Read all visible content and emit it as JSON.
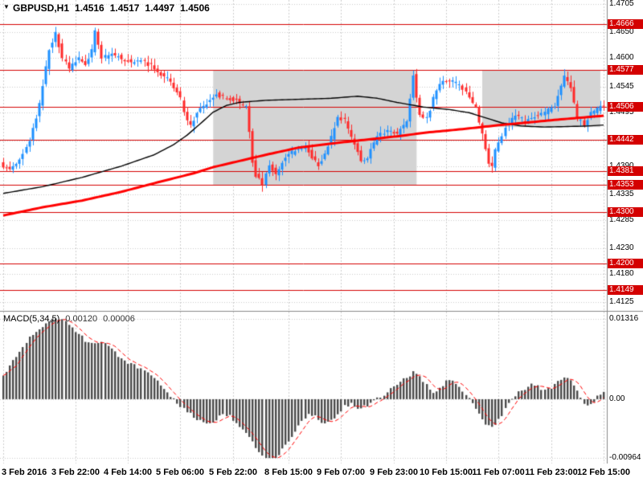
{
  "main_chart": {
    "symbol_timeframe": "GBPUSD,H1",
    "open": "1.4516",
    "high": "1.4517",
    "low": "1.4497",
    "close": "1.4506"
  },
  "macd": {
    "label": "MACD(5,34,5)",
    "value_main": "0.00120",
    "value_signal": "0.00006",
    "axis_labels": [
      "0.01316",
      "0.00",
      "-0.00964"
    ]
  },
  "colors": {
    "background": "#ffffff",
    "grid": "#cccccc",
    "bull": "#1e90ff",
    "bear": "#ff2a2a",
    "ma_fast": "#000000",
    "ma_slow": "#ff0000",
    "level": "#d40000",
    "level_label_bg": "#d40000",
    "zone": "#d4d4d4",
    "histogram": "#4a4a4a",
    "signal": "#ff0000",
    "separator": "#888888",
    "axis_text": "#000000"
  },
  "chart_data": {
    "type": "candlestick",
    "symbol": "GBPUSD",
    "timeframe": "H1",
    "title": "GBPUSD,H1 1.4516 1.4517 1.4497 1.4506",
    "candles_count": 184,
    "price_axis": {
      "scale_min": 1.411,
      "scale_max": 1.471,
      "plain_labels": [
        "1.4705",
        "1.4650",
        "1.4600",
        "1.4545",
        "1.4495",
        "1.4390",
        "1.4335",
        "1.4285",
        "1.4230",
        "1.4180",
        "1.4125"
      ],
      "grid_prices": [
        1.4705,
        1.465,
        1.46,
        1.4545,
        1.4495,
        1.444,
        1.439,
        1.4335,
        1.4285,
        1.423,
        1.418,
        1.4125
      ]
    },
    "levels": [
      "1.4666",
      "1.4577",
      "1.4506",
      "1.4442",
      "1.4381",
      "1.4353",
      "1.4300",
      "1.4200",
      "1.4149"
    ],
    "current_price": "1.4506",
    "zones": [
      {
        "start_bar": 64,
        "end_bar": 126,
        "top_price": 1.4577,
        "bottom_price": 1.4353
      },
      {
        "start_bar": 146,
        "end_bar": 182,
        "top_price": 1.4577,
        "bottom_price": 1.4466
      }
    ],
    "x_ticks": [
      {
        "bar": 0,
        "label": "3 Feb 2016"
      },
      {
        "bar": 22,
        "label": "3 Feb 22:00"
      },
      {
        "bar": 38,
        "label": "4 Feb 14:00"
      },
      {
        "bar": 54,
        "label": "5 Feb 06:00"
      },
      {
        "bar": 70,
        "label": "5 Feb 22:00"
      },
      {
        "bar": 87,
        "label": "8 Feb 15:00"
      },
      {
        "bar": 103,
        "label": "9 Feb 07:00"
      },
      {
        "bar": 119,
        "label": "9 Feb 23:00"
      },
      {
        "bar": 135,
        "label": "10 Feb 15:00"
      },
      {
        "bar": 151,
        "label": "11 Feb 07:00"
      },
      {
        "bar": 167,
        "label": "11 Feb 23:00"
      },
      {
        "bar": 183,
        "label": "12 Feb 15:00"
      }
    ],
    "price_path_anchors": [
      [
        0,
        1.4395
      ],
      [
        3,
        1.4382
      ],
      [
        6,
        1.44
      ],
      [
        9,
        1.4438
      ],
      [
        12,
        1.451
      ],
      [
        15,
        1.4618
      ],
      [
        17,
        1.465
      ],
      [
        19,
        1.46
      ],
      [
        21,
        1.458
      ],
      [
        24,
        1.46
      ],
      [
        26,
        1.4588
      ],
      [
        28,
        1.4615
      ],
      [
        29,
        1.4655
      ],
      [
        31,
        1.46
      ],
      [
        34,
        1.4608
      ],
      [
        37,
        1.46
      ],
      [
        40,
        1.4592
      ],
      [
        43,
        1.4596
      ],
      [
        46,
        1.4585
      ],
      [
        49,
        1.457
      ],
      [
        52,
        1.4556
      ],
      [
        55,
        1.452
      ],
      [
        57,
        1.4478
      ],
      [
        58,
        1.4468
      ],
      [
        60,
        1.4495
      ],
      [
        63,
        1.4512
      ],
      [
        66,
        1.453
      ],
      [
        69,
        1.4522
      ],
      [
        72,
        1.4518
      ],
      [
        75,
        1.4505
      ],
      [
        76,
        1.446
      ],
      [
        77,
        1.44
      ],
      [
        78,
        1.4372
      ],
      [
        80,
        1.4355
      ],
      [
        82,
        1.439
      ],
      [
        84,
        1.4376
      ],
      [
        86,
        1.4398
      ],
      [
        88,
        1.4412
      ],
      [
        90,
        1.442
      ],
      [
        93,
        1.4428
      ],
      [
        95,
        1.4408
      ],
      [
        97,
        1.4392
      ],
      [
        99,
        1.4415
      ],
      [
        101,
        1.4445
      ],
      [
        103,
        1.4488
      ],
      [
        105,
        1.4478
      ],
      [
        107,
        1.4445
      ],
      [
        109,
        1.442
      ],
      [
        110,
        1.4402
      ],
      [
        112,
        1.4408
      ],
      [
        115,
        1.4448
      ],
      [
        118,
        1.446
      ],
      [
        121,
        1.4452
      ],
      [
        124,
        1.4478
      ],
      [
        126,
        1.457
      ],
      [
        127,
        1.452
      ],
      [
        128,
        1.4488
      ],
      [
        130,
        1.4482
      ],
      [
        133,
        1.454
      ],
      [
        136,
        1.4558
      ],
      [
        139,
        1.4552
      ],
      [
        142,
        1.4535
      ],
      [
        145,
        1.4502
      ],
      [
        147,
        1.4452
      ],
      [
        149,
        1.4398
      ],
      [
        150,
        1.4388
      ],
      [
        151,
        1.442
      ],
      [
        154,
        1.4468
      ],
      [
        157,
        1.4488
      ],
      [
        160,
        1.4478
      ],
      [
        163,
        1.4488
      ],
      [
        166,
        1.4494
      ],
      [
        169,
        1.4508
      ],
      [
        171,
        1.4545
      ],
      [
        172,
        1.4565
      ],
      [
        174,
        1.4542
      ],
      [
        176,
        1.4482
      ],
      [
        178,
        1.447
      ],
      [
        180,
        1.4492
      ],
      [
        183,
        1.4506
      ]
    ],
    "ma_fast_black_anchors": [
      [
        0,
        1.4337
      ],
      [
        12,
        1.435
      ],
      [
        24,
        1.4368
      ],
      [
        36,
        1.439
      ],
      [
        46,
        1.4412
      ],
      [
        52,
        1.4432
      ],
      [
        56,
        1.445
      ],
      [
        60,
        1.4472
      ],
      [
        64,
        1.4495
      ],
      [
        68,
        1.4508
      ],
      [
        72,
        1.4514
      ],
      [
        80,
        1.4518
      ],
      [
        90,
        1.452
      ],
      [
        100,
        1.4522
      ],
      [
        108,
        1.4526
      ],
      [
        114,
        1.4522
      ],
      [
        120,
        1.4514
      ],
      [
        128,
        1.4505
      ],
      [
        136,
        1.45
      ],
      [
        142,
        1.4494
      ],
      [
        147,
        1.4484
      ],
      [
        152,
        1.4474
      ],
      [
        158,
        1.4468
      ],
      [
        165,
        1.4466
      ],
      [
        172,
        1.4467
      ],
      [
        178,
        1.4468
      ],
      [
        183,
        1.447
      ]
    ],
    "ma_slow_red_anchors": [
      [
        0,
        1.4294
      ],
      [
        12,
        1.431
      ],
      [
        24,
        1.4323
      ],
      [
        36,
        1.434
      ],
      [
        48,
        1.436
      ],
      [
        58,
        1.4376
      ],
      [
        64,
        1.4388
      ],
      [
        72,
        1.44
      ],
      [
        80,
        1.4412
      ],
      [
        90,
        1.4426
      ],
      [
        100,
        1.4434
      ],
      [
        110,
        1.4441
      ],
      [
        120,
        1.4448
      ],
      [
        130,
        1.4456
      ],
      [
        140,
        1.4462
      ],
      [
        150,
        1.4469
      ],
      [
        160,
        1.4475
      ],
      [
        170,
        1.4481
      ],
      [
        183,
        1.4488
      ]
    ],
    "macd_scale": {
      "min": -0.0104,
      "max": 0.0138,
      "label_max": 0.01316,
      "label_min": -0.00964
    },
    "macd_signal_period": 5,
    "macd_histogram_anchors": [
      [
        0,
        0.0038
      ],
      [
        2,
        0.0055
      ],
      [
        4,
        0.0072
      ],
      [
        6,
        0.0088
      ],
      [
        8,
        0.01
      ],
      [
        10,
        0.0112
      ],
      [
        13,
        0.0124
      ],
      [
        16,
        0.0133
      ],
      [
        19,
        0.013
      ],
      [
        22,
        0.0112
      ],
      [
        25,
        0.0096
      ],
      [
        28,
        0.009
      ],
      [
        30,
        0.0094
      ],
      [
        32,
        0.0086
      ],
      [
        35,
        0.0072
      ],
      [
        38,
        0.006
      ],
      [
        41,
        0.0052
      ],
      [
        44,
        0.0042
      ],
      [
        47,
        0.0028
      ],
      [
        49,
        0.0014
      ],
      [
        51,
        0.0004
      ],
      [
        53,
        -0.0006
      ],
      [
        56,
        -0.002
      ],
      [
        59,
        -0.0034
      ],
      [
        62,
        -0.0042
      ],
      [
        65,
        -0.0034
      ],
      [
        67,
        -0.0024
      ],
      [
        69,
        -0.0028
      ],
      [
        72,
        -0.0044
      ],
      [
        75,
        -0.0064
      ],
      [
        78,
        -0.0086
      ],
      [
        80,
        -0.0101
      ],
      [
        83,
        -0.0099
      ],
      [
        85,
        -0.0082
      ],
      [
        88,
        -0.006
      ],
      [
        91,
        -0.0038
      ],
      [
        93,
        -0.0022
      ],
      [
        95,
        -0.0028
      ],
      [
        98,
        -0.0042
      ],
      [
        100,
        -0.0036
      ],
      [
        102,
        -0.0024
      ],
      [
        104,
        -0.0012
      ],
      [
        106,
        -0.0006
      ],
      [
        108,
        -0.0014
      ],
      [
        110,
        -0.0012
      ],
      [
        112,
        -0.0006
      ],
      [
        114,
        0.0
      ],
      [
        116,
        0.0008
      ],
      [
        119,
        0.002
      ],
      [
        122,
        0.0032
      ],
      [
        125,
        0.0044
      ],
      [
        127,
        0.004
      ],
      [
        129,
        0.0022
      ],
      [
        131,
        0.0008
      ],
      [
        133,
        0.0016
      ],
      [
        135,
        0.0028
      ],
      [
        137,
        0.003
      ],
      [
        139,
        0.0018
      ],
      [
        141,
        0.0006
      ],
      [
        143,
        -0.0008
      ],
      [
        145,
        -0.0026
      ],
      [
        147,
        -0.0042
      ],
      [
        149,
        -0.0046
      ],
      [
        151,
        -0.0034
      ],
      [
        153,
        -0.0016
      ],
      [
        155,
        -0.0002
      ],
      [
        157,
        0.001
      ],
      [
        159,
        0.0018
      ],
      [
        161,
        0.0024
      ],
      [
        163,
        0.002
      ],
      [
        165,
        0.0016
      ],
      [
        167,
        0.002
      ],
      [
        169,
        0.0028
      ],
      [
        171,
        0.0034
      ],
      [
        173,
        0.003
      ],
      [
        175,
        0.0012
      ],
      [
        177,
        -0.001
      ],
      [
        179,
        -0.0008
      ],
      [
        181,
        0.0004
      ],
      [
        183,
        0.0012
      ]
    ]
  }
}
